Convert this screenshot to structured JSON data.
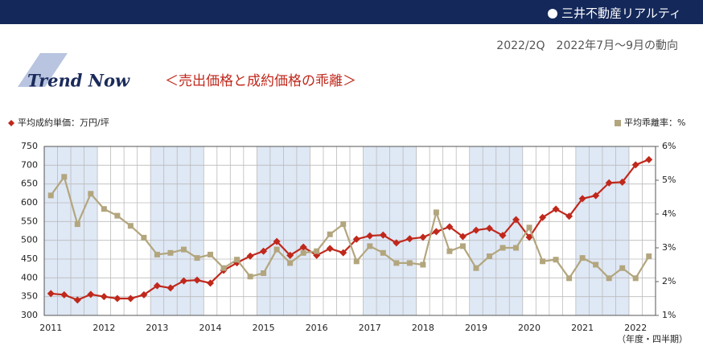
{
  "header": {
    "brand": "三井不動産リアルティ",
    "period": "2022/2Q　2022年7月～9月の動向",
    "logo": "Trend Now",
    "subtitle": "＜売出価格と成約価格の乖離＞"
  },
  "chart_data": {
    "type": "line",
    "categories": [
      "2011",
      null,
      null,
      null,
      "2012",
      null,
      null,
      null,
      "2013",
      null,
      null,
      null,
      "2014",
      null,
      null,
      null,
      "2015",
      null,
      null,
      null,
      "2016",
      null,
      null,
      null,
      "2017",
      null,
      null,
      null,
      "2018",
      null,
      null,
      null,
      "2019",
      null,
      null,
      null,
      "2020",
      null,
      null,
      null,
      "2021",
      null,
      null,
      null,
      "2022",
      null
    ],
    "x_label": "（年度・四半期）",
    "series": [
      {
        "name": "平均成約単価：万円/坪",
        "color": "#c0281c",
        "marker": "diamond",
        "values": [
          358,
          355,
          341,
          356,
          350,
          345,
          345,
          355,
          379,
          373,
          392,
          394,
          386,
          420,
          440,
          458,
          471,
          497,
          460,
          482,
          460,
          478,
          467,
          503,
          512,
          514,
          493,
          504,
          508,
          523,
          536,
          510,
          527,
          532,
          513,
          555,
          508,
          561,
          583,
          564,
          611,
          619,
          653,
          655,
          701,
          715
        ]
      },
      {
        "name": "平均乖離率：%",
        "color": "#b3a67e",
        "marker": "square",
        "axis": "y2",
        "values": [
          4.55,
          5.1,
          3.7,
          4.6,
          4.15,
          3.95,
          3.65,
          3.3,
          2.8,
          2.85,
          2.95,
          2.7,
          2.8,
          2.4,
          2.65,
          2.15,
          2.25,
          2.95,
          2.55,
          2.85,
          2.9,
          3.4,
          3.7,
          2.6,
          3.05,
          2.85,
          2.55,
          2.55,
          2.5,
          4.05,
          2.9,
          3.05,
          2.4,
          2.75,
          3.0,
          3.0,
          3.6,
          2.6,
          2.65,
          2.1,
          2.7,
          2.5,
          2.1,
          2.4,
          2.1,
          2.75
        ]
      }
    ],
    "ylim": [
      300,
      750
    ],
    "yticks": [
      300,
      350,
      400,
      450,
      500,
      550,
      600,
      650,
      700,
      750
    ],
    "y2lim": [
      1,
      6
    ],
    "y2ticks": [
      {
        "value": 1,
        "label": "1%"
      },
      {
        "value": 2,
        "label": "2%"
      },
      {
        "value": 3,
        "label": "3%"
      },
      {
        "value": 4,
        "label": "4%"
      },
      {
        "value": 5,
        "label": "5%"
      },
      {
        "value": 6,
        "label": "6%"
      }
    ],
    "grid": true
  }
}
